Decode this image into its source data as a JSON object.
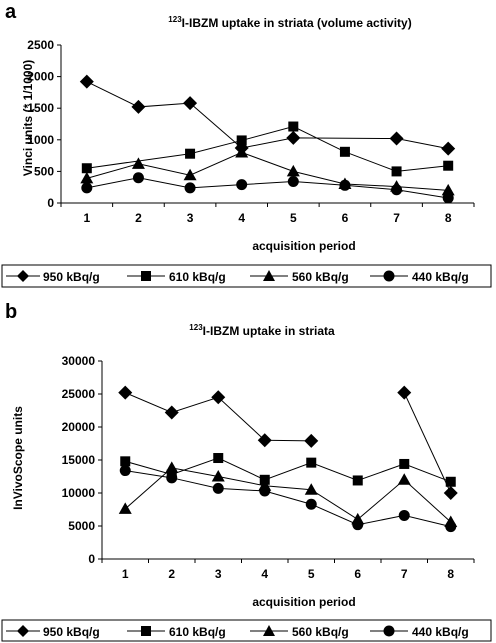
{
  "chart_data": [
    {
      "panel": "a",
      "type": "line",
      "title_sup": "123",
      "title": "I-IBZM uptake in striata (volume activity)",
      "xlabel": "acquisition period",
      "ylabel": "Vinci units (* 1/1000)",
      "x": [
        1,
        2,
        3,
        4,
        5,
        6,
        7,
        8
      ],
      "ylim": [
        0,
        2500
      ],
      "yticks": [
        0,
        500,
        1000,
        1500,
        2000,
        2500
      ],
      "series": [
        {
          "name": "950 kBq/g",
          "marker": "diamond",
          "points": [
            [
              1,
              1920
            ],
            [
              2,
              1520
            ],
            [
              3,
              1580
            ],
            [
              4,
              870
            ],
            [
              5,
              1030
            ],
            [
              7,
              1020
            ],
            [
              8,
              860
            ]
          ]
        },
        {
          "name": "610 kBq/g",
          "marker": "square",
          "points": [
            [
              1,
              550
            ],
            [
              3,
              780
            ],
            [
              4,
              990
            ],
            [
              5,
              1210
            ],
            [
              6,
              810
            ],
            [
              7,
              500
            ],
            [
              8,
              590
            ]
          ]
        },
        {
          "name": "560 kBq/g",
          "marker": "triangle",
          "points": [
            [
              1,
              390
            ],
            [
              2,
              620
            ],
            [
              3,
              440
            ],
            [
              4,
              800
            ],
            [
              5,
              500
            ],
            [
              6,
              300
            ],
            [
              7,
              260
            ],
            [
              8,
              200
            ]
          ]
        },
        {
          "name": "440 kBq/g",
          "marker": "circle",
          "points": [
            [
              1,
              240
            ],
            [
              2,
              400
            ],
            [
              3,
              240
            ],
            [
              4,
              290
            ],
            [
              5,
              340
            ],
            [
              6,
              280
            ],
            [
              7,
              210
            ],
            [
              8,
              80
            ]
          ]
        }
      ]
    },
    {
      "panel": "b",
      "type": "line",
      "title_sup": "123",
      "title": "I-IBZM uptake in striata",
      "xlabel": "acquisition period",
      "ylabel": "InVivoScope units",
      "x": [
        1,
        2,
        3,
        4,
        5,
        6,
        7,
        8
      ],
      "ylim": [
        0,
        30000
      ],
      "yticks": [
        0,
        5000,
        10000,
        15000,
        20000,
        25000,
        30000
      ],
      "series": [
        {
          "name": "950 kBq/g",
          "marker": "diamond",
          "segments": [
            [
              [
                1,
                25200
              ],
              [
                2,
                22200
              ],
              [
                3,
                24500
              ],
              [
                4,
                18000
              ],
              [
                5,
                17900
              ]
            ],
            [
              [
                7,
                25200
              ],
              [
                8,
                10000
              ]
            ]
          ]
        },
        {
          "name": "610 kBq/g",
          "marker": "square",
          "segments": [
            [
              [
                1,
                14800
              ],
              [
                2,
                12800
              ],
              [
                3,
                15300
              ],
              [
                4,
                12000
              ],
              [
                5,
                14600
              ],
              [
                6,
                11900
              ],
              [
                7,
                14400
              ],
              [
                8,
                11700
              ]
            ]
          ]
        },
        {
          "name": "560 kBq/g",
          "marker": "triangle",
          "segments": [
            [
              [
                1,
                7600
              ],
              [
                2,
                13800
              ],
              [
                3,
                12500
              ],
              [
                4,
                11100
              ],
              [
                5,
                10500
              ],
              [
                6,
                6000
              ],
              [
                7,
                12000
              ],
              [
                8,
                5600
              ]
            ]
          ]
        },
        {
          "name": "440 kBq/g",
          "marker": "circle",
          "segments": [
            [
              [
                1,
                13400
              ],
              [
                2,
                12300
              ],
              [
                3,
                10700
              ],
              [
                4,
                10300
              ],
              [
                5,
                8300
              ],
              [
                6,
                5200
              ],
              [
                7,
                6600
              ],
              [
                8,
                4900
              ]
            ]
          ]
        }
      ]
    }
  ]
}
